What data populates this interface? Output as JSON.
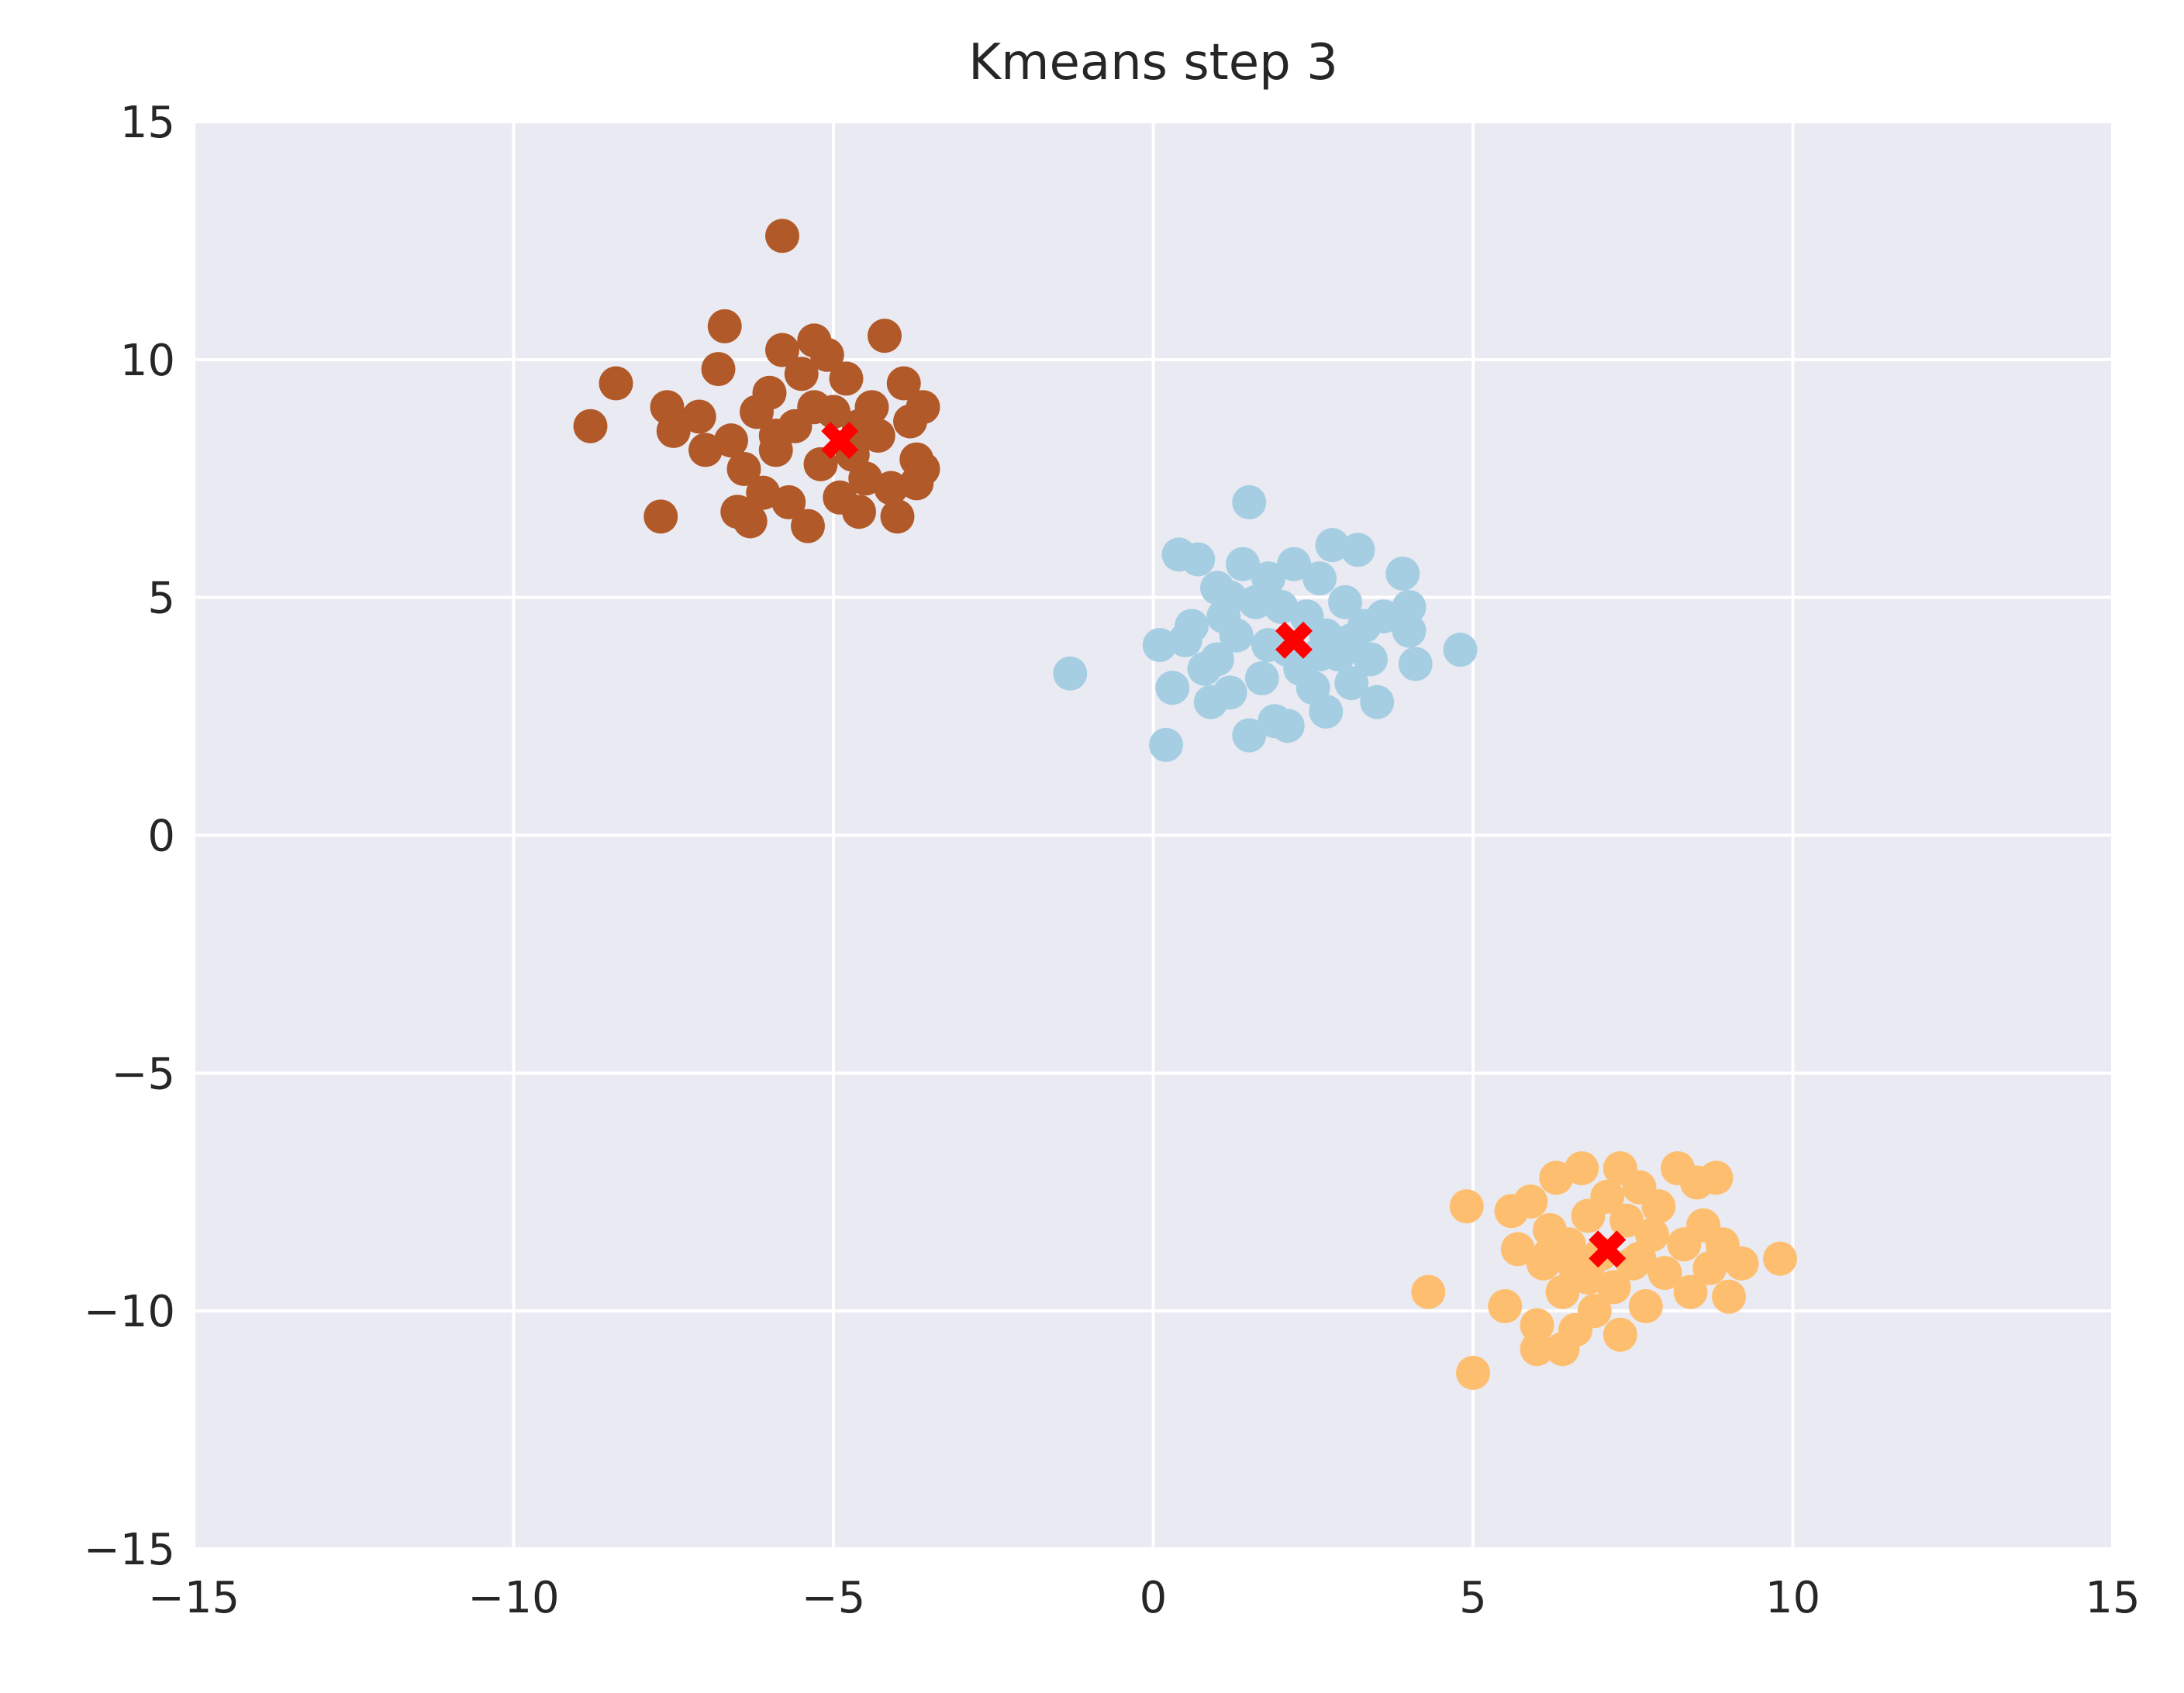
{
  "chart_data": {
    "type": "scatter",
    "title": "Kmeans step 3",
    "xlabel": "",
    "ylabel": "",
    "xlim": [
      -15,
      15
    ],
    "ylim": [
      -15,
      15
    ],
    "xticks": [
      -15,
      -10,
      -5,
      0,
      5,
      10,
      15
    ],
    "yticks": [
      -15,
      -10,
      -5,
      0,
      5,
      10,
      15
    ],
    "xtick_labels": [
      "−15",
      "−10",
      "−5",
      "0",
      "5",
      "10",
      "15"
    ],
    "ytick_labels": [
      "−15",
      "−10",
      "−5",
      "0",
      "5",
      "10",
      "15"
    ],
    "grid": true,
    "legend": "none",
    "background": "#eaeaf2",
    "grid_color": "#ffffff",
    "series": [
      {
        "color": "#a6cee3",
        "points": [
          [
            -1.3,
            3.4
          ],
          [
            0.1,
            4.0
          ],
          [
            0.2,
            1.9
          ],
          [
            0.3,
            3.1
          ],
          [
            0.4,
            5.9
          ],
          [
            0.7,
            5.8
          ],
          [
            0.6,
            4.4
          ],
          [
            0.8,
            3.5
          ],
          [
            0.9,
            2.8
          ],
          [
            1.0,
            3.7
          ],
          [
            1.0,
            5.2
          ],
          [
            1.1,
            4.6
          ],
          [
            1.2,
            3.0
          ],
          [
            1.3,
            4.2
          ],
          [
            1.4,
            5.7
          ],
          [
            1.5,
            7.0
          ],
          [
            1.5,
            2.1
          ],
          [
            1.6,
            4.9
          ],
          [
            1.7,
            3.3
          ],
          [
            1.8,
            5.4
          ],
          [
            1.9,
            2.4
          ],
          [
            2.0,
            4.8
          ],
          [
            2.1,
            3.9
          ],
          [
            2.1,
            2.3
          ],
          [
            2.2,
            5.7
          ],
          [
            2.3,
            3.5
          ],
          [
            2.4,
            4.6
          ],
          [
            2.5,
            3.1
          ],
          [
            2.6,
            5.4
          ],
          [
            2.7,
            4.2
          ],
          [
            2.7,
            2.6
          ],
          [
            2.8,
            6.1
          ],
          [
            2.9,
            3.8
          ],
          [
            3.0,
            4.9
          ],
          [
            3.1,
            3.2
          ],
          [
            3.2,
            6.0
          ],
          [
            3.3,
            4.4
          ],
          [
            3.4,
            3.7
          ],
          [
            3.5,
            2.8
          ],
          [
            3.6,
            4.6
          ],
          [
            3.9,
            5.5
          ],
          [
            4.0,
            4.8
          ],
          [
            4.0,
            4.3
          ],
          [
            4.1,
            3.6
          ],
          [
            4.8,
            3.9
          ],
          [
            0.5,
            4.1
          ],
          [
            1.2,
            5.0
          ],
          [
            1.8,
            4.0
          ],
          [
            2.6,
            3.8
          ],
          [
            3.1,
            4.1
          ]
        ]
      },
      {
        "color": "#b15928",
        "points": [
          [
            -8.8,
            8.6
          ],
          [
            -8.4,
            9.5
          ],
          [
            -7.7,
            6.7
          ],
          [
            -7.6,
            9.0
          ],
          [
            -7.5,
            8.5
          ],
          [
            -7.1,
            8.8
          ],
          [
            -7.0,
            8.1
          ],
          [
            -6.8,
            9.8
          ],
          [
            -6.7,
            10.7
          ],
          [
            -6.6,
            8.3
          ],
          [
            -6.5,
            6.8
          ],
          [
            -6.4,
            7.7
          ],
          [
            -6.3,
            6.6
          ],
          [
            -6.2,
            8.9
          ],
          [
            -6.1,
            7.2
          ],
          [
            -6.0,
            9.3
          ],
          [
            -5.9,
            8.1
          ],
          [
            -5.8,
            12.6
          ],
          [
            -5.8,
            10.2
          ],
          [
            -5.7,
            7.0
          ],
          [
            -5.6,
            8.6
          ],
          [
            -5.5,
            9.7
          ],
          [
            -5.4,
            6.5
          ],
          [
            -5.3,
            10.4
          ],
          [
            -5.2,
            7.8
          ],
          [
            -5.1,
            10.1
          ],
          [
            -5.0,
            8.9
          ],
          [
            -4.9,
            7.1
          ],
          [
            -4.8,
            9.6
          ],
          [
            -4.7,
            8.0
          ],
          [
            -4.6,
            6.8
          ],
          [
            -4.5,
            7.5
          ],
          [
            -4.4,
            9.0
          ],
          [
            -4.3,
            8.4
          ],
          [
            -4.2,
            10.5
          ],
          [
            -4.1,
            7.3
          ],
          [
            -4.0,
            6.7
          ],
          [
            -3.9,
            9.5
          ],
          [
            -3.8,
            8.7
          ],
          [
            -3.7,
            7.4
          ],
          [
            -3.7,
            7.9
          ],
          [
            -3.6,
            9.0
          ],
          [
            -3.6,
            7.7
          ],
          [
            -5.9,
            8.4
          ],
          [
            -5.3,
            9.0
          ],
          [
            -4.6,
            8.6
          ]
        ]
      },
      {
        "color": "#fdbf6f",
        "points": [
          [
            4.3,
            -9.6
          ],
          [
            4.9,
            -7.8
          ],
          [
            5.0,
            -11.3
          ],
          [
            5.5,
            -9.9
          ],
          [
            5.6,
            -7.9
          ],
          [
            5.7,
            -8.7
          ],
          [
            5.9,
            -7.7
          ],
          [
            6.0,
            -10.3
          ],
          [
            6.0,
            -10.8
          ],
          [
            6.1,
            -9.0
          ],
          [
            6.2,
            -8.3
          ],
          [
            6.3,
            -7.2
          ],
          [
            6.4,
            -9.6
          ],
          [
            6.4,
            -10.8
          ],
          [
            6.5,
            -8.6
          ],
          [
            6.6,
            -10.4
          ],
          [
            6.7,
            -7.0
          ],
          [
            6.8,
            -8.0
          ],
          [
            6.8,
            -9.3
          ],
          [
            6.9,
            -10.0
          ],
          [
            7.0,
            -8.8
          ],
          [
            7.1,
            -7.6
          ],
          [
            7.2,
            -9.5
          ],
          [
            7.3,
            -7.0
          ],
          [
            7.3,
            -10.5
          ],
          [
            7.4,
            -8.1
          ],
          [
            7.5,
            -9.0
          ],
          [
            7.6,
            -7.4
          ],
          [
            7.7,
            -9.9
          ],
          [
            7.8,
            -8.4
          ],
          [
            7.9,
            -7.8
          ],
          [
            8.0,
            -9.2
          ],
          [
            8.2,
            -7.0
          ],
          [
            8.3,
            -8.6
          ],
          [
            8.4,
            -9.6
          ],
          [
            8.5,
            -7.3
          ],
          [
            8.6,
            -8.2
          ],
          [
            8.7,
            -9.1
          ],
          [
            8.8,
            -7.2
          ],
          [
            8.9,
            -8.6
          ],
          [
            9.0,
            -9.7
          ],
          [
            9.2,
            -9.0
          ],
          [
            9.8,
            -8.9
          ],
          [
            6.6,
            -9.1
          ],
          [
            7.6,
            -8.9
          ],
          [
            6.2,
            -8.8
          ]
        ]
      }
    ],
    "centroids": {
      "color": "#ff0000",
      "marker": "X",
      "points": [
        [
          2.2,
          4.1
        ],
        [
          -4.9,
          8.3
        ],
        [
          7.1,
          -8.7
        ]
      ]
    }
  }
}
